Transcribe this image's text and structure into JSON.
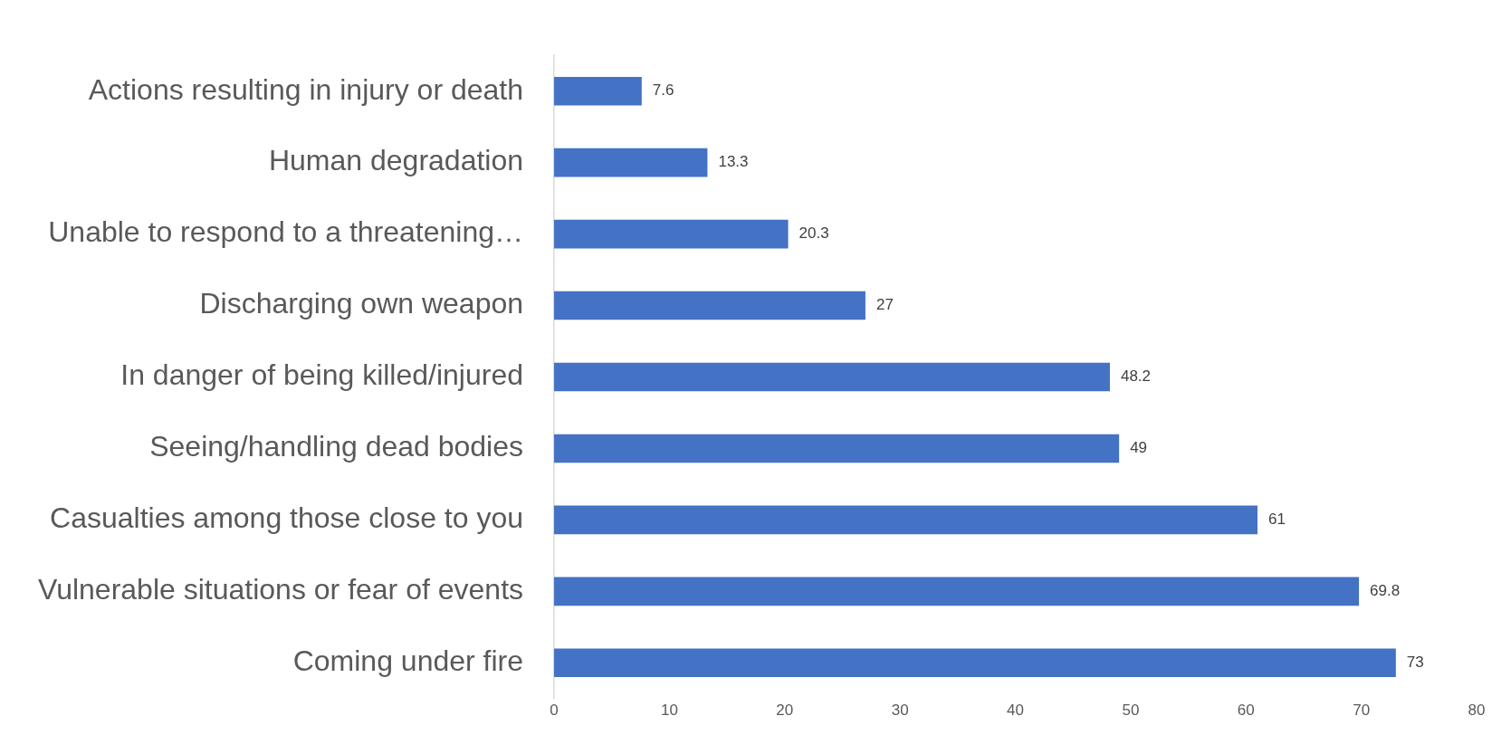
{
  "chart_data": {
    "type": "bar",
    "orientation": "horizontal",
    "categories": [
      "Actions resulting in injury or death",
      "Human degradation",
      "Unable to respond to a threatening…",
      "Discharging own weapon",
      "In danger of being killed/injured",
      "Seeing/handling dead bodies",
      "Casualties among those close to you",
      "Vulnerable situations or fear of events",
      "Coming under fire"
    ],
    "values": [
      7.6,
      13.3,
      20.3,
      27,
      48.2,
      49,
      61,
      69.8,
      73
    ],
    "color": "#4472c4",
    "xlim": [
      0,
      80
    ],
    "xticks": [
      0,
      10,
      20,
      30,
      40,
      50,
      60,
      70,
      80
    ],
    "grid": false,
    "legend": false,
    "data_labels": true
  }
}
